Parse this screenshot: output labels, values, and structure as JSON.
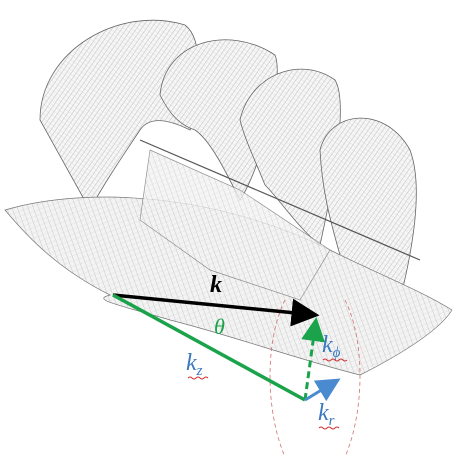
{
  "labels": {
    "k": "k",
    "theta": "θ",
    "kz": {
      "base": "k",
      "sub": "z"
    },
    "kphi": {
      "base": "k",
      "sub": "ϕ"
    },
    "kr": {
      "base": "k",
      "sub": "r"
    }
  }
}
